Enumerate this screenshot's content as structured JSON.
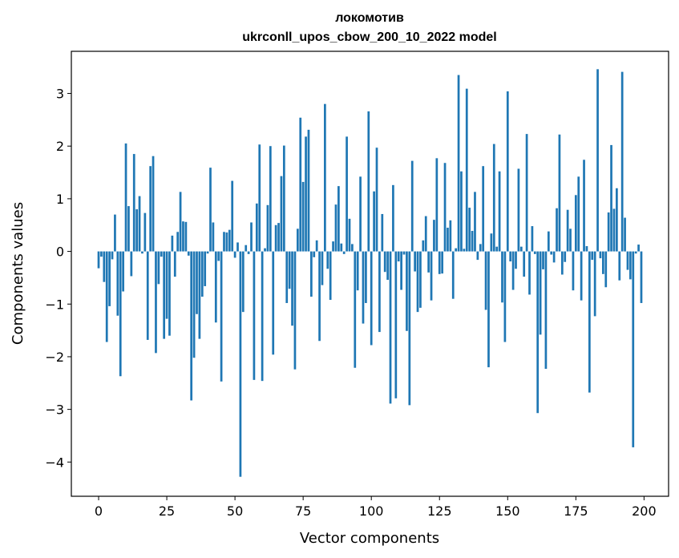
{
  "chart_data": {
    "type": "bar",
    "title": "локомотив",
    "subtitle": "ukrconll_upos_cbow_200_10_2022 model",
    "xlabel": "Vector components",
    "ylabel": "Components values",
    "xlim": [
      -10,
      209
    ],
    "ylim": [
      -4.65,
      3.8
    ],
    "xticks": [
      0,
      25,
      50,
      75,
      100,
      125,
      150,
      175,
      200
    ],
    "yticks": [
      -4,
      -3,
      -2,
      -1,
      0,
      1,
      2,
      3
    ],
    "x": [
      0,
      1,
      2,
      3,
      4,
      5,
      6,
      7,
      8,
      9,
      10,
      11,
      12,
      13,
      14,
      15,
      16,
      17,
      18,
      19,
      20,
      21,
      22,
      23,
      24,
      25,
      26,
      27,
      28,
      29,
      30,
      31,
      32,
      33,
      34,
      35,
      36,
      37,
      38,
      39,
      40,
      41,
      42,
      43,
      44,
      45,
      46,
      47,
      48,
      49,
      50,
      51,
      52,
      53,
      54,
      55,
      56,
      57,
      58,
      59,
      60,
      61,
      62,
      63,
      64,
      65,
      66,
      67,
      68,
      69,
      70,
      71,
      72,
      73,
      74,
      75,
      76,
      77,
      78,
      79,
      80,
      81,
      82,
      83,
      84,
      85,
      86,
      87,
      88,
      89,
      90,
      91,
      92,
      93,
      94,
      95,
      96,
      97,
      98,
      99,
      100,
      101,
      102,
      103,
      104,
      105,
      106,
      107,
      108,
      109,
      110,
      111,
      112,
      113,
      114,
      115,
      116,
      117,
      118,
      119,
      120,
      121,
      122,
      123,
      124,
      125,
      126,
      127,
      128,
      129,
      130,
      131,
      132,
      133,
      134,
      135,
      136,
      137,
      138,
      139,
      140,
      141,
      142,
      143,
      144,
      145,
      146,
      147,
      148,
      149,
      150,
      151,
      152,
      153,
      154,
      155,
      156,
      157,
      158,
      159,
      160,
      161,
      162,
      163,
      164,
      165,
      166,
      167,
      168,
      169,
      170,
      171,
      172,
      173,
      174,
      175,
      176,
      177,
      178,
      179,
      180,
      181,
      182,
      183,
      184,
      185,
      186,
      187,
      188,
      189,
      190,
      191,
      192,
      193,
      194,
      195,
      196,
      197,
      198,
      199
    ],
    "values": [
      -0.32,
      -0.1,
      -0.58,
      -1.72,
      -1.04,
      -0.15,
      0.7,
      -1.22,
      -2.37,
      -0.76,
      2.05,
      0.86,
      -0.47,
      1.85,
      0.8,
      1.05,
      -0.04,
      0.73,
      -1.68,
      1.62,
      1.81,
      -1.93,
      -0.62,
      -0.1,
      -1.66,
      -1.28,
      -1.6,
      0.3,
      -0.48,
      0.37,
      1.13,
      0.57,
      0.56,
      -0.08,
      -2.83,
      -2.02,
      -1.19,
      -1.66,
      -0.86,
      -0.66,
      -0.04,
      1.59,
      0.55,
      -1.35,
      -0.18,
      -2.47,
      0.37,
      0.36,
      0.41,
      1.34,
      -0.12,
      0.17,
      -4.28,
      -1.15,
      0.12,
      -0.05,
      0.55,
      -2.44,
      0.91,
      2.03,
      -2.46,
      0.06,
      0.88,
      2.0,
      -1.96,
      0.5,
      0.54,
      1.43,
      2.01,
      -0.98,
      -0.71,
      -1.41,
      -2.24,
      0.43,
      2.54,
      1.32,
      2.18,
      2.31,
      -0.86,
      -0.11,
      0.21,
      -1.7,
      -0.64,
      2.8,
      -0.33,
      -0.92,
      0.19,
      0.89,
      1.24,
      0.15,
      -0.05,
      2.18,
      0.62,
      0.14,
      -2.21,
      -0.74,
      1.42,
      -1.37,
      -0.98,
      2.66,
      -1.78,
      1.14,
      1.97,
      -1.53,
      0.71,
      -0.39,
      -0.54,
      -2.89,
      1.26,
      -2.79,
      -0.19,
      -0.73,
      -0.06,
      -1.51,
      -2.92,
      1.72,
      -0.38,
      -1.15,
      -1.07,
      0.21,
      0.67,
      -0.4,
      -0.93,
      0.6,
      1.77,
      -0.43,
      -0.42,
      1.68,
      0.45,
      0.59,
      -0.9,
      0.06,
      3.35,
      1.52,
      0.05,
      3.09,
      0.83,
      0.39,
      1.13,
      -0.16,
      0.14,
      1.62,
      -1.11,
      -2.2,
      0.34,
      2.04,
      0.09,
      1.52,
      -0.97,
      -1.72,
      3.04,
      -0.19,
      -0.73,
      -0.33,
      1.57,
      0.09,
      -0.48,
      2.23,
      -0.82,
      0.48,
      -0.05,
      -3.07,
      -1.58,
      -0.34,
      -2.23,
      0.38,
      -0.06,
      -0.21,
      0.82,
      2.22,
      -0.44,
      -0.2,
      0.79,
      0.43,
      -0.74,
      1.07,
      1.42,
      -0.93,
      1.74,
      0.1,
      -2.68,
      -0.16,
      -1.23,
      3.46,
      -0.13,
      -0.43,
      -0.68,
      0.74,
      2.02,
      0.81,
      1.2,
      -0.55,
      3.41,
      0.64,
      -0.35,
      -0.53,
      -3.72,
      -0.04,
      0.13,
      -0.98
    ]
  }
}
